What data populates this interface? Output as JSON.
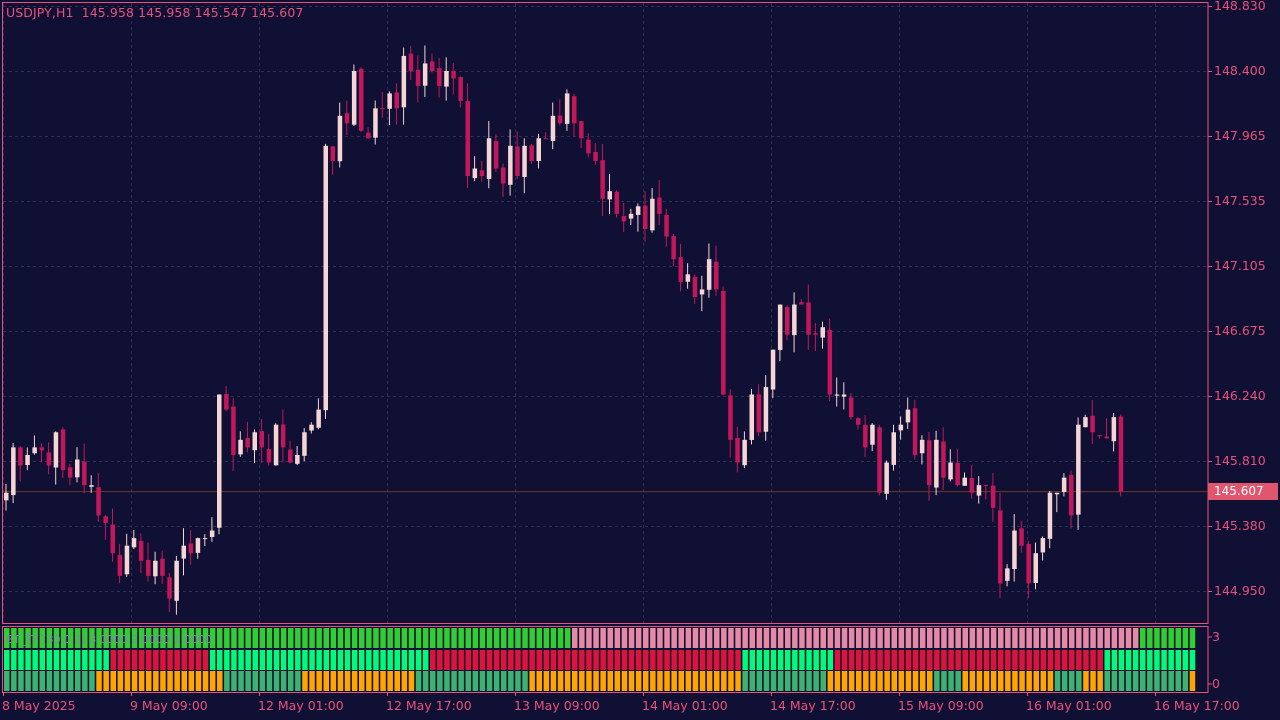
{
  "title": "USDJPY,H1  145.958 145.958 145.547 145.607",
  "indicator_title": "BT_TF (30,0.1) 3.0000 2.0000 1.0000",
  "current_price": "145.607",
  "colors": {
    "background": "#0f1033",
    "grid": "#2c2f52",
    "axis_text": "#e8527a",
    "bull": "#f5d5d5",
    "bear": "#c2185b",
    "current_line": "#6b3a24",
    "bar_green": "#32cd32",
    "bar_pink": "#e48aa5",
    "bar_springgreen": "#00fa7a",
    "bar_crimson": "#dc143c",
    "bar_seagreen": "#3cb371",
    "bar_orange": "#ffa500"
  },
  "chart_data": {
    "type": "candlestick",
    "symbol": "USDJPY",
    "timeframe": "H1",
    "y_ticks": [
      "148.830",
      "148.400",
      "147.965",
      "147.535",
      "147.105",
      "146.675",
      "146.240",
      "145.810",
      "145.380",
      "144.950"
    ],
    "ylim": [
      144.7,
      148.83
    ],
    "x_ticks": [
      "8 May 2025",
      "9 May 09:00",
      "12 May 01:00",
      "12 May 17:00",
      "13 May 09:00",
      "14 May 01:00",
      "14 May 17:00",
      "15 May 09:00",
      "16 May 01:00",
      "16 May 17:00"
    ],
    "indicator_y_ticks": [
      "3",
      "0"
    ],
    "closes": [
      145.6,
      145.9,
      145.78,
      145.85,
      145.9,
      145.88,
      145.78,
      146.0,
      145.75,
      145.7,
      145.82,
      145.65,
      145.65,
      145.45,
      145.4,
      145.2,
      145.05,
      145.25,
      145.3,
      145.15,
      145.05,
      145.15,
      145.05,
      144.9,
      145.15,
      145.25,
      145.2,
      145.3,
      145.3,
      145.35,
      146.25,
      146.15,
      145.85,
      145.95,
      145.9,
      146.0,
      145.9,
      145.8,
      146.05,
      145.9,
      145.8,
      145.85,
      146.0,
      146.05,
      146.15,
      147.9,
      147.8,
      148.1,
      148.05,
      148.4,
      148.0,
      147.95,
      148.15,
      148.15,
      148.25,
      148.15,
      148.5,
      148.4,
      148.3,
      148.45,
      148.4,
      148.3,
      148.4,
      148.35,
      148.2,
      147.7,
      147.75,
      147.7,
      147.95,
      147.75,
      147.65,
      147.9,
      147.7,
      147.9,
      147.8,
      147.95,
      147.95,
      148.1,
      148.05,
      148.25,
      148.05,
      147.95,
      147.85,
      147.8,
      147.55,
      147.6,
      147.45,
      147.4,
      147.45,
      147.5,
      147.35,
      147.55,
      147.45,
      147.3,
      147.15,
      147.0,
      147.05,
      146.9,
      146.95,
      147.15,
      146.95,
      146.25,
      145.95,
      145.8,
      145.95,
      146.25,
      146.0,
      146.3,
      146.55,
      146.85,
      146.65,
      146.85,
      146.85,
      146.65,
      146.65,
      146.7,
      146.25,
      146.25,
      146.25,
      146.1,
      146.05,
      145.9,
      146.05,
      145.6,
      145.8,
      146.0,
      146.05,
      146.15,
      145.85,
      145.95,
      145.65,
      145.95,
      145.7,
      145.8,
      145.65,
      145.7,
      145.6,
      145.65,
      145.65,
      145.5,
      145.0,
      145.1,
      145.35,
      145.25,
      145.0,
      145.2,
      145.3,
      145.6,
      145.6,
      145.7,
      145.45,
      146.05,
      146.1,
      146.0,
      145.98,
      145.96,
      146.1,
      145.607
    ]
  },
  "indicator": {
    "rows": [
      {
        "segments": [
          [
            0,
            80,
            "bar_green"
          ],
          [
            80,
            160,
            "bar_pink"
          ],
          [
            160,
            168,
            "bar_green"
          ]
        ]
      },
      {
        "segments": [
          [
            0,
            15,
            "bar_springgreen"
          ],
          [
            15,
            29,
            "bar_crimson"
          ],
          [
            29,
            60,
            "bar_springgreen"
          ],
          [
            60,
            104,
            "bar_crimson"
          ],
          [
            104,
            117,
            "bar_springgreen"
          ],
          [
            117,
            155,
            "bar_crimson"
          ],
          [
            155,
            168,
            "bar_springgreen"
          ]
        ]
      },
      {
        "segments": [
          [
            0,
            13,
            "bar_seagreen"
          ],
          [
            13,
            31,
            "bar_orange"
          ],
          [
            31,
            42,
            "bar_seagreen"
          ],
          [
            42,
            58,
            "bar_orange"
          ],
          [
            58,
            74,
            "bar_seagreen"
          ],
          [
            74,
            104,
            "bar_orange"
          ],
          [
            104,
            116,
            "bar_seagreen"
          ],
          [
            116,
            131,
            "bar_orange"
          ],
          [
            131,
            135,
            "bar_seagreen"
          ],
          [
            135,
            148,
            "bar_orange"
          ],
          [
            148,
            152,
            "bar_seagreen"
          ],
          [
            152,
            155,
            "bar_orange"
          ],
          [
            155,
            167,
            "bar_seagreen"
          ],
          [
            167,
            168,
            "bar_orange"
          ]
        ]
      }
    ]
  }
}
